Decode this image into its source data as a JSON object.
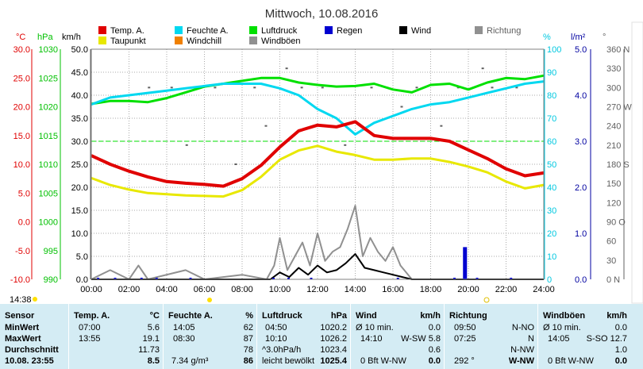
{
  "title": "Mittwoch, 10.08.2016",
  "colors": {
    "temp": "#e00000",
    "taupunkt": "#e8e800",
    "feuchte": "#00d8f0",
    "windchill": "#f08000",
    "luftdruck": "#00e000",
    "regen": "#0000d0",
    "wind": "#000000",
    "windboeen": "#909090",
    "richtung": "#606060",
    "grid": "#aaaaaa",
    "axis_temp": "#e00000",
    "axis_press": "#00c000",
    "axis_hum": "#00c8e0",
    "axis_rain": "#0000a0",
    "table_bg": "#d4ecf4"
  },
  "legend": {
    "temp": "Temp. A.",
    "feuchte": "Feuchte A.",
    "luftdruck": "Luftdruck",
    "regen": "Regen",
    "wind": "Wind",
    "richtung": "Richtung",
    "taupunkt": "Taupunkt",
    "windchill": "Windchill",
    "windboeen": "Windböen"
  },
  "axes": {
    "temp": {
      "unit": "°C",
      "ticks": [
        "30.0",
        "25.0",
        "20.0",
        "15.0",
        "10.0",
        "5.0",
        "0.0",
        "-5.0",
        "-10.0"
      ]
    },
    "press": {
      "unit": "hPa",
      "ticks": [
        "1030",
        "1025",
        "1020",
        "1015",
        "1010",
        "1005",
        "1000",
        "995",
        "990"
      ]
    },
    "wind": {
      "unit": "km/h",
      "ticks": [
        "50.0",
        "45.0",
        "40.0",
        "35.0",
        "30.0",
        "25.0",
        "20.0",
        "15.0",
        "10.0",
        "5.0",
        "0.0"
      ]
    },
    "hum": {
      "unit": "%",
      "ticks": [
        "100",
        "90",
        "80",
        "70",
        "60",
        "50",
        "40",
        "30",
        "20",
        "10",
        "0"
      ]
    },
    "rain": {
      "unit": "l/m²",
      "ticks": [
        "5.0",
        "4.0",
        "3.0",
        "2.0",
        "1.0",
        "0.0"
      ]
    },
    "dir": {
      "unit": "°",
      "ticks": [
        "360 N",
        "330",
        "300",
        "270 W",
        "240",
        "210",
        "180 S",
        "150",
        "120",
        "90 O",
        "60",
        "30",
        "0 N"
      ]
    },
    "time_ticks": [
      "00:00",
      "02:00",
      "04:00",
      "06:00",
      "08:00",
      "10:00",
      "12:00",
      "14:00",
      "16:00",
      "18:00",
      "20:00",
      "22:00",
      "24:00"
    ]
  },
  "sunrise": "14:38",
  "chart_data": {
    "type": "line",
    "title": "Mittwoch, 10.08.2016",
    "x_unit": "hours",
    "xlim": [
      0,
      24
    ],
    "series": [
      {
        "name": "Temp. A.",
        "axis": "temp",
        "ylim": [
          -10,
          30
        ],
        "x": [
          0,
          1,
          2,
          3,
          4,
          5,
          6,
          7,
          8,
          9,
          10,
          11,
          12,
          13,
          14,
          15,
          16,
          17,
          18,
          19,
          20,
          21,
          22,
          23,
          24
        ],
        "values": [
          11.5,
          10,
          8.8,
          7.8,
          7,
          6.7,
          6.5,
          6.2,
          7.5,
          9.8,
          13,
          15.8,
          16.8,
          16.5,
          17.4,
          15,
          14.5,
          14.5,
          14.5,
          14,
          12.5,
          11,
          9.2,
          8,
          8.5
        ]
      },
      {
        "name": "Taupunkt",
        "axis": "temp",
        "ylim": [
          -10,
          30
        ],
        "x": [
          0,
          1,
          2,
          3,
          4,
          5,
          6,
          7,
          8,
          9,
          10,
          11,
          12,
          13,
          14,
          15,
          16,
          17,
          18,
          19,
          20,
          21,
          22,
          23,
          24
        ],
        "values": [
          7.6,
          6.4,
          5.6,
          5,
          4.8,
          4.6,
          4.5,
          4.4,
          5.5,
          7.8,
          10.8,
          12.4,
          13.2,
          12.2,
          11.6,
          10.8,
          10.8,
          11,
          11,
          10.4,
          9.6,
          8.6,
          7,
          5.8,
          6.4
        ]
      },
      {
        "name": "Feuchte A.",
        "axis": "hum",
        "ylim": [
          0,
          100
        ],
        "x": [
          0,
          1,
          2,
          3,
          4,
          5,
          6,
          7,
          8,
          9,
          10,
          11,
          12,
          13,
          14,
          15,
          16,
          17,
          18,
          19,
          20,
          21,
          22,
          23,
          24
        ],
        "values": [
          76,
          79,
          80,
          81,
          82,
          83,
          84,
          85,
          85,
          85,
          83,
          80,
          74,
          70,
          63,
          68,
          71,
          74,
          76,
          77,
          79,
          81,
          83,
          85,
          86
        ]
      },
      {
        "name": "Luftdruck",
        "axis": "press",
        "ylim": [
          990,
          1030
        ],
        "x": [
          0,
          1,
          2,
          3,
          4,
          5,
          6,
          7,
          8,
          9,
          10,
          11,
          12,
          13,
          14,
          15,
          16,
          17,
          18,
          19,
          20,
          21,
          22,
          23,
          24
        ],
        "values": [
          1020.5,
          1021,
          1021,
          1020.8,
          1021.5,
          1022.5,
          1023.5,
          1024,
          1024.5,
          1025,
          1025,
          1024.2,
          1023.8,
          1023.5,
          1023.6,
          1024,
          1023,
          1022.5,
          1023.8,
          1024,
          1023,
          1024.2,
          1025,
          1024.8,
          1025.4
        ]
      },
      {
        "name": "Wind",
        "axis": "wind",
        "ylim": [
          0,
          50
        ],
        "x": [
          0,
          9.5,
          10,
          10.5,
          11,
          11.5,
          12,
          12.5,
          13,
          13.5,
          14,
          14.5,
          15,
          15.5,
          16,
          16.5,
          17,
          24
        ],
        "values": [
          0,
          0,
          1.5,
          0.5,
          2.5,
          1,
          3,
          1.5,
          2,
          3.5,
          5.5,
          2.5,
          2,
          1.5,
          1,
          0.5,
          0,
          0
        ]
      },
      {
        "name": "Windböen",
        "axis": "wind",
        "ylim": [
          0,
          50
        ],
        "x": [
          0,
          1,
          2,
          2.5,
          3,
          5,
          6,
          8,
          9.3,
          9.7,
          10,
          10.4,
          10.8,
          11.2,
          11.6,
          12,
          12.4,
          12.8,
          13.2,
          13.6,
          14,
          14.4,
          14.8,
          15.2,
          15.6,
          16,
          16.4,
          17,
          24
        ],
        "values": [
          0,
          2,
          0,
          3,
          0,
          2,
          0,
          1,
          0,
          3,
          9,
          2,
          5,
          8,
          3,
          10,
          4,
          6,
          7,
          11,
          16,
          5,
          9,
          6,
          4,
          7,
          3,
          0,
          0
        ]
      },
      {
        "name": "Regen",
        "axis": "rain",
        "ylim": [
          0,
          5
        ],
        "x": [
          19.8
        ],
        "values": [
          0.7
        ]
      }
    ]
  },
  "table": {
    "sensor": {
      "header": "Sensor",
      "rows": [
        "MinWert",
        "MaxWert",
        "Durchschnitt",
        "10.08. 23:55"
      ]
    },
    "temp": {
      "header": "Temp. A.",
      "unit": "°C",
      "rows": [
        [
          "07:00",
          "5.6"
        ],
        [
          "13:55",
          "19.1"
        ],
        [
          "",
          "11.73"
        ],
        [
          "",
          "8.5"
        ]
      ]
    },
    "feuchte": {
      "header": "Feuchte A.",
      "unit": "%",
      "rows": [
        [
          "14:05",
          "62"
        ],
        [
          "08:30",
          "87"
        ],
        [
          "",
          "78"
        ],
        [
          "7.34 g/m³",
          "86"
        ]
      ]
    },
    "luftdruck": {
      "header": "Luftdruck",
      "unit": "hPa",
      "rows": [
        [
          "04:50",
          "1020.2"
        ],
        [
          "10:10",
          "1026.2"
        ],
        [
          "^3.0hPa/h",
          "1023.4"
        ],
        [
          "leicht bewölkt",
          "1025.4"
        ]
      ]
    },
    "wind": {
      "header": "Wind",
      "unit": "km/h",
      "rows": [
        [
          "Ø 10 min.",
          "0.0"
        ],
        [
          "14:10",
          "W-SW 5.8"
        ],
        [
          "",
          "0.6"
        ],
        [
          "0 Bft W-NW",
          "0.0"
        ]
      ]
    },
    "richtung": {
      "header": "Richtung",
      "unit": "",
      "rows": [
        [
          "09:50",
          "N-NO"
        ],
        [
          "07:25",
          "N"
        ],
        [
          "",
          "N-NW"
        ],
        [
          "292 °",
          "W-NW"
        ]
      ]
    },
    "boeen": {
      "header": "Windböen",
      "unit": "km/h",
      "rows": [
        [
          "Ø 10 min.",
          "0.0"
        ],
        [
          "14:05",
          "S-SO 12.7"
        ],
        [
          "",
          "1.0"
        ],
        [
          "0 Bft W-NW",
          "0.0"
        ]
      ]
    }
  }
}
